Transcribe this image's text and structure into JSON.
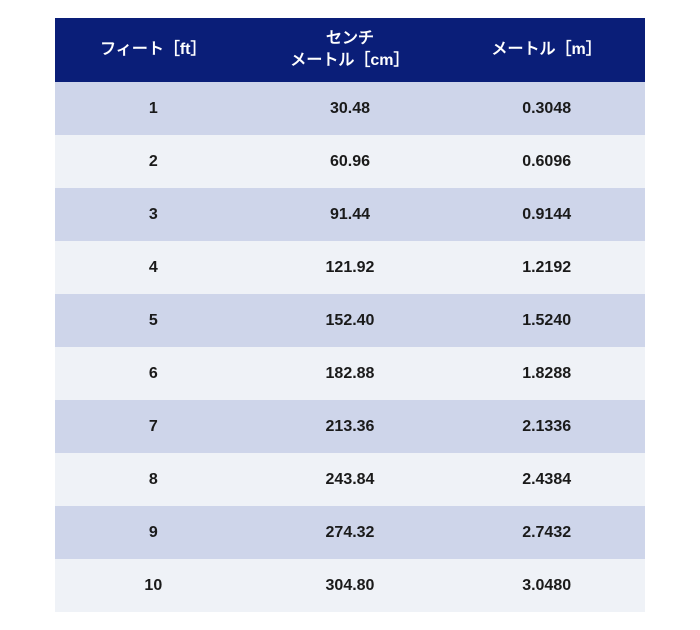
{
  "table": {
    "columns": [
      {
        "label_line1": "フィート［ft］",
        "label_line2": ""
      },
      {
        "label_line1": "センチ",
        "label_line2": "メートル［cm］"
      },
      {
        "label_line1": "メートル［m］",
        "label_line2": ""
      }
    ],
    "rows": [
      [
        "1",
        "30.48",
        "0.3048"
      ],
      [
        "2",
        "60.96",
        "0.6096"
      ],
      [
        "3",
        "91.44",
        "0.9144"
      ],
      [
        "4",
        "121.92",
        "1.2192"
      ],
      [
        "5",
        "152.40",
        "1.5240"
      ],
      [
        "6",
        "182.88",
        "1.8288"
      ],
      [
        "7",
        "213.36",
        "2.1336"
      ],
      [
        "8",
        "243.84",
        "2.4384"
      ],
      [
        "9",
        "274.32",
        "2.7432"
      ],
      [
        "10",
        "304.80",
        "3.0480"
      ]
    ],
    "header_bg": "#0a1e78",
    "header_color": "#ffffff",
    "row_odd_bg": "#ced5ea",
    "row_even_bg": "#eff2f7",
    "cell_color": "#1a1a1a",
    "header_fontsize": 16,
    "cell_fontsize": 16,
    "column_widths": [
      "33.33%",
      "33.33%",
      "33.33%"
    ]
  }
}
